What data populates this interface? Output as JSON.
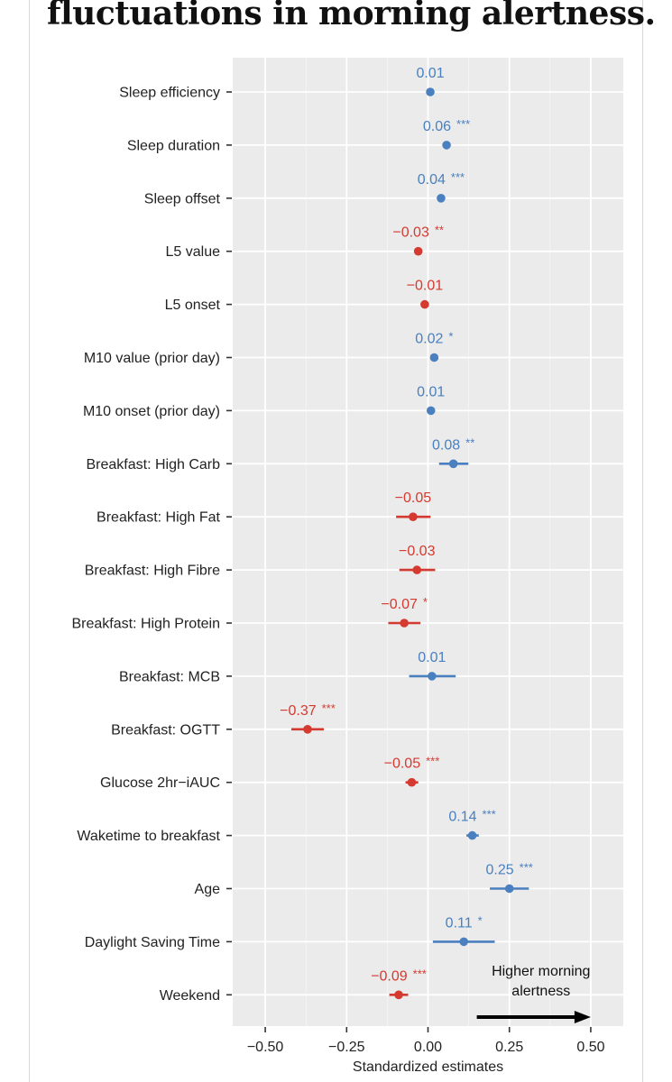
{
  "headline": "fluctuations in morning alertness.",
  "chart_data": {
    "type": "forest",
    "xlabel": "Standardized estimates",
    "xlim": [
      -0.6,
      0.6
    ],
    "xticks": [
      -0.5,
      -0.25,
      0.0,
      0.25,
      0.5
    ],
    "xtick_labels": [
      "−0.50",
      "−0.25",
      "0.00",
      "0.25",
      "0.50"
    ],
    "grid": true,
    "colors": {
      "positive": "#4a80bf",
      "negative": "#d43a2f"
    },
    "annotation": {
      "lines": [
        "Higher morning",
        "alertness"
      ],
      "arrow_from": 0.15,
      "arrow_to": 0.5
    },
    "rows": [
      {
        "label": "Sleep efficiency",
        "estimate": 0.007,
        "ci": [
          0.0,
          0.014
        ],
        "text": "0.01",
        "sign": "positive"
      },
      {
        "label": "Sleep duration",
        "estimate": 0.057,
        "ci": [
          0.049,
          0.066
        ],
        "text": "0.06 ***",
        "sign": "positive"
      },
      {
        "label": "Sleep offset",
        "estimate": 0.04,
        "ci": [
          0.031,
          0.05
        ],
        "text": "0.04 ***",
        "sign": "positive"
      },
      {
        "label": "L5 value",
        "estimate": -0.03,
        "ci": [
          -0.04,
          -0.02
        ],
        "text": "−0.03 **",
        "sign": "negative"
      },
      {
        "label": "L5 onset",
        "estimate": -0.01,
        "ci": [
          -0.018,
          -0.002
        ],
        "text": "−0.01",
        "sign": "negative"
      },
      {
        "label": "M10 value (prior day)",
        "estimate": 0.019,
        "ci": [
          0.009,
          0.029
        ],
        "text": "0.02 *",
        "sign": "positive"
      },
      {
        "label": "M10 onset (prior day)",
        "estimate": 0.009,
        "ci": [
          -0.001,
          0.018
        ],
        "text": "0.01",
        "sign": "positive"
      },
      {
        "label": "Breakfast: High Carb",
        "estimate": 0.078,
        "ci": [
          0.034,
          0.124
        ],
        "text": "0.08 **",
        "sign": "positive"
      },
      {
        "label": "Breakfast: High Fat",
        "estimate": -0.046,
        "ci": [
          -0.098,
          0.008
        ],
        "text": "−0.05",
        "sign": "negative"
      },
      {
        "label": "Breakfast: High Fibre",
        "estimate": -0.034,
        "ci": [
          -0.088,
          0.022
        ],
        "text": "−0.03",
        "sign": "negative"
      },
      {
        "label": "Breakfast: High Protein",
        "estimate": -0.073,
        "ci": [
          -0.122,
          -0.023
        ],
        "text": "−0.07 *",
        "sign": "negative"
      },
      {
        "label": "Breakfast: MCB",
        "estimate": 0.012,
        "ci": [
          -0.058,
          0.085
        ],
        "text": "0.01",
        "sign": "positive"
      },
      {
        "label": "Breakfast: OGTT",
        "estimate": -0.37,
        "ci": [
          -0.42,
          -0.32
        ],
        "text": "−0.37 ***",
        "sign": "negative"
      },
      {
        "label": "Glucose 2hr−iAUC",
        "estimate": -0.05,
        "ci": [
          -0.069,
          -0.03
        ],
        "text": "−0.05 ***",
        "sign": "negative"
      },
      {
        "label": "Waketime to breakfast",
        "estimate": 0.136,
        "ci": [
          0.118,
          0.156
        ],
        "text": "0.14 ***",
        "sign": "positive"
      },
      {
        "label": "Age",
        "estimate": 0.25,
        "ci": [
          0.19,
          0.31
        ],
        "text": "0.25 ***",
        "sign": "positive"
      },
      {
        "label": "Daylight Saving Time",
        "estimate": 0.11,
        "ci": [
          0.015,
          0.205
        ],
        "text": "0.11 *",
        "sign": "positive"
      },
      {
        "label": "Weekend",
        "estimate": -0.09,
        "ci": [
          -0.119,
          -0.061
        ],
        "text": "−0.09 ***",
        "sign": "negative"
      }
    ]
  }
}
